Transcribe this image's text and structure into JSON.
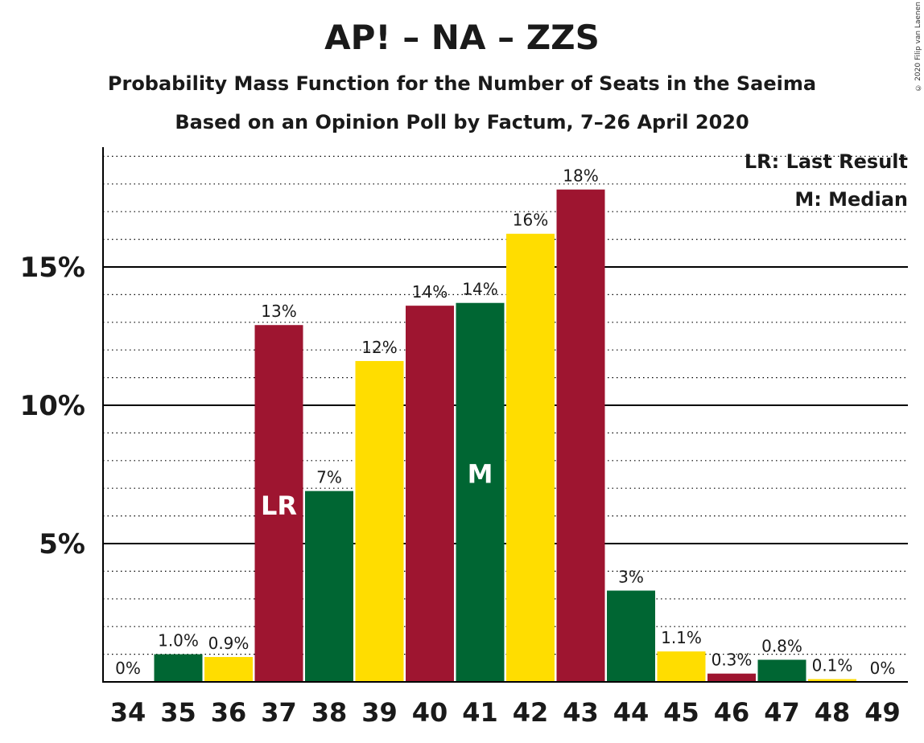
{
  "title": "AP! – NA – ZZS",
  "subtitle": "Probability Mass Function for the Number of Seats in the Saeima",
  "subtitle2": "Based on an Opinion Poll by Factum, 7–26 April 2020",
  "copyright": "© 2020 Filip van Laenen",
  "legend": {
    "last_result": "LR: Last Result",
    "median": "M: Median"
  },
  "colors": {
    "green": "#006633",
    "red": "#9E1530",
    "yellow": "#FFDD00",
    "grid": "#000000"
  },
  "chart_data": {
    "type": "bar",
    "categories": [
      "34",
      "35",
      "36",
      "37",
      "38",
      "39",
      "40",
      "41",
      "42",
      "43",
      "44",
      "45",
      "46",
      "47",
      "48",
      "49"
    ],
    "values": [
      0,
      1.0,
      0.9,
      12.9,
      6.9,
      11.6,
      13.6,
      13.7,
      16.2,
      17.8,
      3.3,
      1.1,
      0.3,
      0.8,
      0.1,
      0
    ],
    "data_labels": [
      "0%",
      "1.0%",
      "0.9%",
      "13%",
      "7%",
      "12%",
      "14%",
      "14%",
      "16%",
      "18%",
      "3%",
      "1.1%",
      "0.3%",
      "0.8%",
      "0.1%",
      "0%"
    ],
    "bar_colors": [
      "green",
      "green",
      "yellow",
      "red",
      "green",
      "yellow",
      "red",
      "green",
      "yellow",
      "red",
      "green",
      "yellow",
      "red",
      "green",
      "yellow",
      "red"
    ],
    "markers": {
      "37": "LR",
      "41": "M"
    },
    "yticks": [
      5,
      10,
      15
    ],
    "ytick_labels": [
      "5%",
      "10%",
      "15%"
    ],
    "ylim": [
      0,
      19.3
    ],
    "minor_grid_step": 1
  }
}
